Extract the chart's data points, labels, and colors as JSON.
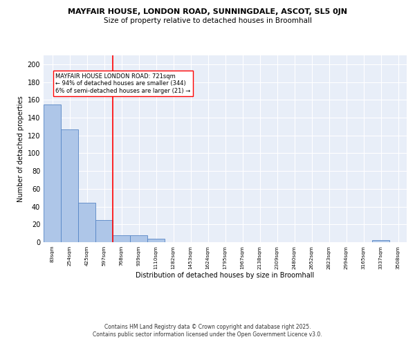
{
  "title1": "MAYFAIR HOUSE, LONDON ROAD, SUNNINGDALE, ASCOT, SL5 0JN",
  "title2": "Size of property relative to detached houses in Broomhall",
  "xlabel": "Distribution of detached houses by size in Broomhall",
  "ylabel": "Number of detached properties",
  "bin_labels": [
    "83sqm",
    "254sqm",
    "425sqm",
    "597sqm",
    "768sqm",
    "939sqm",
    "1110sqm",
    "1282sqm",
    "1453sqm",
    "1624sqm",
    "1795sqm",
    "1967sqm",
    "2138sqm",
    "2309sqm",
    "2480sqm",
    "2652sqm",
    "2823sqm",
    "2994sqm",
    "3165sqm",
    "3337sqm",
    "3508sqm"
  ],
  "bar_heights": [
    155,
    127,
    44,
    25,
    8,
    8,
    4,
    0,
    0,
    0,
    0,
    0,
    0,
    0,
    0,
    0,
    0,
    0,
    0,
    2,
    0
  ],
  "bar_color": "#aec6e8",
  "bar_edge_color": "#5585c5",
  "annotation_text": "MAYFAIR HOUSE LONDON ROAD: 721sqm\n← 94% of detached houses are smaller (344)\n6% of semi-detached houses are larger (21) →",
  "annotation_box_color": "white",
  "annotation_box_edge_color": "red",
  "vline_color": "red",
  "ylim": [
    0,
    210
  ],
  "yticks": [
    0,
    20,
    40,
    60,
    80,
    100,
    120,
    140,
    160,
    180,
    200
  ],
  "background_color": "#e8eef8",
  "grid_color": "white",
  "footer_line1": "Contains HM Land Registry data © Crown copyright and database right 2025.",
  "footer_line2": "Contains public sector information licensed under the Open Government Licence v3.0."
}
